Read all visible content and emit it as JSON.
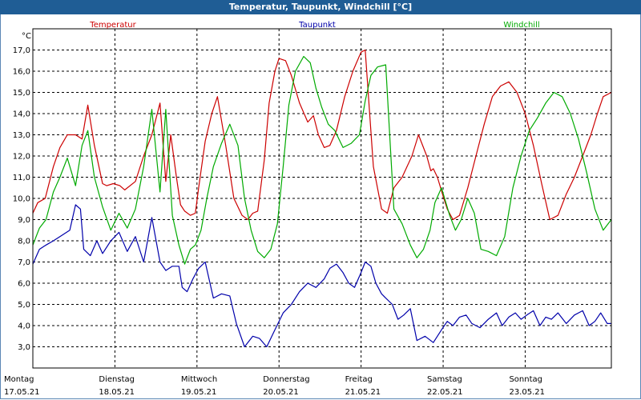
{
  "window": {
    "title": "Temperatur, Taupunkt, Windchill [°C]"
  },
  "chart_data": {
    "type": "line",
    "title": "Temperatur, Taupunkt, Windchill [°C]",
    "ylabel": "°C",
    "ylim": [
      2.0,
      18.0
    ],
    "yticks": [
      "17,0",
      "16,0",
      "15,0",
      "14,0",
      "13,0",
      "12,0",
      "11,0",
      "10,0",
      "9,0",
      "8,0",
      "7,0",
      "6,0",
      "5,0",
      "4,0",
      "3,0"
    ],
    "xlim": [
      0,
      7.05
    ],
    "xticks": [
      {
        "day": "Montag",
        "date": "17.05.21"
      },
      {
        "day": "Dienstag",
        "date": "18.05.21"
      },
      {
        "day": "Mittwoch",
        "date": "19.05.21"
      },
      {
        "day": "Donnerstag",
        "date": "20.05.21"
      },
      {
        "day": "Freitag",
        "date": "21.05.21"
      },
      {
        "day": "Samstag",
        "date": "22.05.21"
      },
      {
        "day": "Sonntag",
        "date": "23.05.21"
      }
    ],
    "grid": true,
    "legend_position": "top",
    "series": [
      {
        "name": "Temperatur",
        "color": "#cc0000",
        "x": [
          0,
          0.06,
          0.15,
          0.25,
          0.33,
          0.42,
          0.52,
          0.6,
          0.67,
          0.75,
          0.85,
          0.9,
          0.98,
          1.06,
          1.12,
          1.25,
          1.35,
          1.45,
          1.55,
          1.62,
          1.68,
          1.75,
          1.8,
          1.85,
          1.92,
          1.98,
          2.02,
          2.1,
          2.18,
          2.25,
          2.35,
          2.45,
          2.55,
          2.62,
          2.68,
          2.74,
          2.82,
          2.88,
          2.95,
          3.0,
          3.08,
          3.15,
          3.25,
          3.35,
          3.42,
          3.48,
          3.55,
          3.62,
          3.7,
          3.8,
          3.9,
          4.0,
          4.05,
          4.15,
          4.25,
          4.32,
          4.4,
          4.5,
          4.62,
          4.7,
          4.8,
          4.85,
          4.88,
          4.93,
          5.0,
          5.05,
          5.12,
          5.2,
          5.3,
          5.4,
          5.5,
          5.6,
          5.7,
          5.8,
          5.9,
          6.0,
          6.1,
          6.2,
          6.3,
          6.4,
          6.5,
          6.6,
          6.7,
          6.8,
          6.88,
          6.95,
          7.05
        ],
        "y": [
          9.3,
          9.8,
          10.0,
          11.5,
          12.4,
          13.0,
          13.0,
          12.8,
          14.4,
          12.5,
          10.7,
          10.6,
          10.7,
          10.6,
          10.4,
          10.8,
          12.0,
          13.0,
          14.5,
          10.8,
          13.0,
          11.0,
          9.7,
          9.4,
          9.2,
          9.3,
          10.5,
          12.7,
          14.0,
          14.8,
          12.5,
          10.0,
          9.2,
          9.0,
          9.3,
          9.4,
          11.8,
          14.5,
          16.0,
          16.6,
          16.5,
          15.8,
          14.5,
          13.6,
          13.9,
          13.0,
          12.4,
          12.5,
          13.2,
          14.8,
          16.0,
          16.9,
          17.0,
          11.5,
          9.5,
          9.3,
          10.5,
          11.0,
          12.0,
          13.0,
          12.0,
          11.3,
          11.4,
          11.0,
          10.1,
          9.5,
          9.0,
          9.2,
          10.5,
          12.0,
          13.5,
          14.8,
          15.3,
          15.5,
          15.0,
          14.0,
          12.5,
          10.7,
          9.0,
          9.2,
          10.2,
          11.0,
          12.0,
          13.0,
          14.0,
          14.8,
          15.0
        ]
      },
      {
        "name": "Taupunkt",
        "color": "#0000aa",
        "x": [
          0,
          0.08,
          0.16,
          0.25,
          0.33,
          0.45,
          0.52,
          0.58,
          0.62,
          0.7,
          0.78,
          0.85,
          0.95,
          1.05,
          1.15,
          1.25,
          1.35,
          1.45,
          1.55,
          1.62,
          1.7,
          1.78,
          1.82,
          1.88,
          1.95,
          2.02,
          2.1,
          2.2,
          2.3,
          2.4,
          2.48,
          2.58,
          2.68,
          2.76,
          2.85,
          2.95,
          3.05,
          3.15,
          3.25,
          3.35,
          3.45,
          3.55,
          3.62,
          3.7,
          3.78,
          3.85,
          3.92,
          4.0,
          4.05,
          4.12,
          4.18,
          4.25,
          4.3,
          4.38,
          4.45,
          4.52,
          4.6,
          4.68,
          4.78,
          4.88,
          4.98,
          5.05,
          5.12,
          5.2,
          5.28,
          5.35,
          5.45,
          5.55,
          5.65,
          5.72,
          5.8,
          5.88,
          5.95,
          6.02,
          6.1,
          6.18,
          6.25,
          6.32,
          6.4,
          6.5,
          6.6,
          6.7,
          6.78,
          6.85,
          6.92,
          7.0,
          7.05
        ],
        "y": [
          6.9,
          7.6,
          7.8,
          8.0,
          8.2,
          8.5,
          9.7,
          9.5,
          7.6,
          7.3,
          8.0,
          7.4,
          8.0,
          8.4,
          7.5,
          8.2,
          7.0,
          9.1,
          7.0,
          6.6,
          6.8,
          6.8,
          5.8,
          5.6,
          6.2,
          6.7,
          7.0,
          5.3,
          5.5,
          5.4,
          4.1,
          3.0,
          3.5,
          3.4,
          3.0,
          3.8,
          4.6,
          5.0,
          5.6,
          6.0,
          5.8,
          6.2,
          6.7,
          6.9,
          6.5,
          6.0,
          5.8,
          6.5,
          7.0,
          6.8,
          6.0,
          5.5,
          5.3,
          5.0,
          4.3,
          4.5,
          4.8,
          3.3,
          3.5,
          3.2,
          3.8,
          4.2,
          4.0,
          4.4,
          4.5,
          4.1,
          3.9,
          4.3,
          4.6,
          4.0,
          4.4,
          4.6,
          4.3,
          4.5,
          4.7,
          4.0,
          4.4,
          4.3,
          4.6,
          4.1,
          4.5,
          4.7,
          4.0,
          4.2,
          4.6,
          4.1,
          4.1
        ]
      },
      {
        "name": "Windchill",
        "color": "#00aa00",
        "x": [
          0,
          0.08,
          0.16,
          0.25,
          0.33,
          0.42,
          0.52,
          0.6,
          0.67,
          0.75,
          0.85,
          0.95,
          1.05,
          1.15,
          1.25,
          1.35,
          1.45,
          1.55,
          1.62,
          1.7,
          1.78,
          1.85,
          1.92,
          1.98,
          2.05,
          2.12,
          2.2,
          2.3,
          2.4,
          2.5,
          2.58,
          2.66,
          2.74,
          2.82,
          2.9,
          2.98,
          3.05,
          3.12,
          3.2,
          3.3,
          3.38,
          3.45,
          3.52,
          3.6,
          3.68,
          3.78,
          3.88,
          3.98,
          4.05,
          4.12,
          4.2,
          4.3,
          4.4,
          4.5,
          4.6,
          4.68,
          4.76,
          4.84,
          4.9,
          4.98,
          5.08,
          5.15,
          5.22,
          5.3,
          5.38,
          5.46,
          5.55,
          5.65,
          5.75,
          5.85,
          5.95,
          6.05,
          6.15,
          6.25,
          6.35,
          6.45,
          6.55,
          6.65,
          6.75,
          6.85,
          6.95,
          7.05
        ],
        "y": [
          7.8,
          8.6,
          9.0,
          10.3,
          11.0,
          11.9,
          10.6,
          12.5,
          13.2,
          11.0,
          9.6,
          8.5,
          9.3,
          8.6,
          9.5,
          11.5,
          14.2,
          10.3,
          14.2,
          9.2,
          7.8,
          6.9,
          7.6,
          7.8,
          8.5,
          10.0,
          11.5,
          12.6,
          13.5,
          12.5,
          10.0,
          8.5,
          7.5,
          7.2,
          7.6,
          8.8,
          11.5,
          14.4,
          16.0,
          16.7,
          16.4,
          15.2,
          14.3,
          13.5,
          13.2,
          12.4,
          12.6,
          13.0,
          14.6,
          15.8,
          16.2,
          16.3,
          9.5,
          8.8,
          7.8,
          7.2,
          7.6,
          8.5,
          9.8,
          10.5,
          9.2,
          8.5,
          9.0,
          10.0,
          9.3,
          7.6,
          7.5,
          7.3,
          8.2,
          10.5,
          12.0,
          13.2,
          13.8,
          14.5,
          15.0,
          14.8,
          14.0,
          12.8,
          11.2,
          9.5,
          8.5,
          9.0
        ]
      }
    ]
  }
}
